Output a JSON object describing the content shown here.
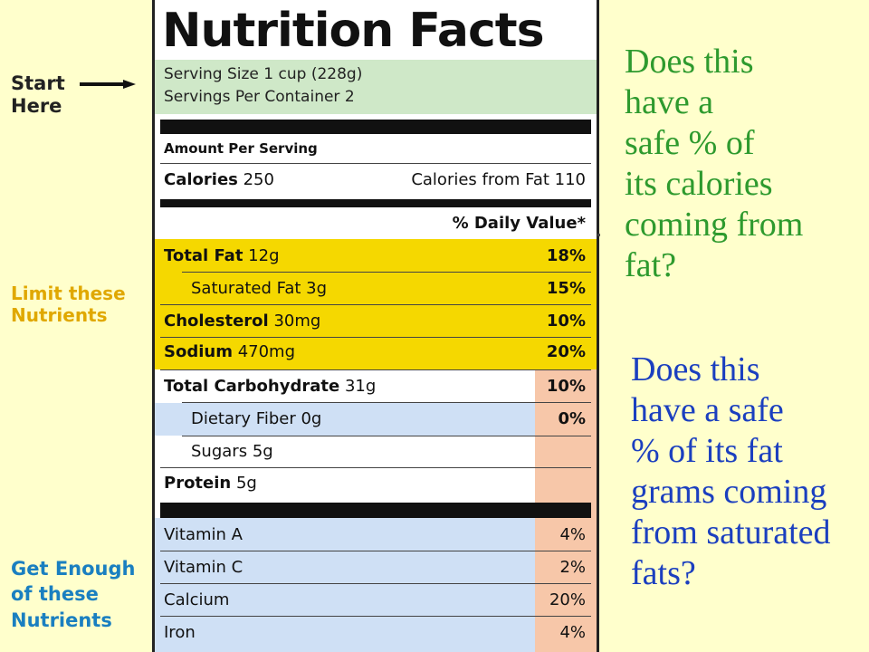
{
  "label": {
    "title": "Nutrition Facts",
    "serving_size": "Serving Size 1 cup (228g)",
    "servings_per_container": "Servings Per Container 2",
    "amount_per_serving": "Amount Per Serving",
    "calories_label": "Calories",
    "calories_value": "250",
    "calories_from_fat": "Calories from Fat 110",
    "daily_value_header": "% Daily Value*",
    "nutrients": [
      {
        "name": "Total Fat",
        "amount": "12g",
        "dv": "18%"
      },
      {
        "name": "Saturated Fat",
        "amount": "3g",
        "dv": "15%"
      },
      {
        "name": "Cholesterol",
        "amount": "30mg",
        "dv": "10%"
      },
      {
        "name": "Sodium",
        "amount": "470mg",
        "dv": "20%"
      },
      {
        "name": "Total Carbohydrate",
        "amount": "31g",
        "dv": "10%"
      },
      {
        "name": "Dietary Fiber",
        "amount": "0g",
        "dv": "0%"
      },
      {
        "name": "Sugars",
        "amount": "5g",
        "dv": ""
      },
      {
        "name": "Protein",
        "amount": "5g",
        "dv": ""
      }
    ],
    "vitamins": [
      {
        "name": "Vitamin A",
        "dv": "4%"
      },
      {
        "name": "Vitamin C",
        "dv": "2%"
      },
      {
        "name": "Calcium",
        "dv": "20%"
      },
      {
        "name": "Iron",
        "dv": "4%"
      }
    ]
  },
  "annotations": {
    "start_line1": "Start",
    "start_line2": "Here",
    "limit_line1": "Limit these",
    "limit_line2": "Nutrients",
    "enough_line1": "Get Enough",
    "enough_line2": "of these",
    "enough_line3": "Nutrients"
  },
  "questions": {
    "q1_lines": [
      "Does this",
      "have a",
      "safe % of",
      "its calories",
      "coming from",
      "fat?"
    ],
    "q2_lines": [
      "Does this",
      "have a safe",
      "% of its fat",
      "grams coming",
      "from saturated",
      "fats?"
    ]
  },
  "colors": {
    "background": "#ffffcc",
    "serving_band": "#cfe8c8",
    "limit_band": "#f5d800",
    "fiber_band": "#cfe0f5",
    "dv_column": "#f7c7a9",
    "q1_text": "#2e9a2e",
    "q2_text": "#1b3fbf",
    "limit_text": "#e0a800",
    "enough_text": "#1a7fc0"
  }
}
